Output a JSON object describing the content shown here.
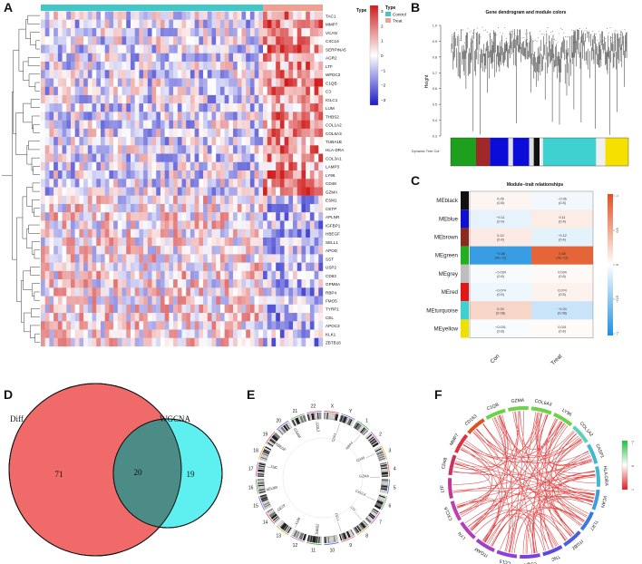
{
  "panel_labels": {
    "a": "A",
    "b": "B",
    "c": "C",
    "d": "D",
    "e": "E",
    "f": "F"
  },
  "panelA": {
    "genes": [
      "TAC1",
      "MMP7",
      "VCAN",
      "CXCL6",
      "SERPINA5",
      "AGR2",
      "LTF",
      "WFDC2",
      "C1QB",
      "C3",
      "IGLC1",
      "LUM",
      "THBS2",
      "COL1A2",
      "COL6A3",
      "TUBA1B",
      "HLA-DRA",
      "COL3A1",
      "LAMP3",
      "LY96",
      "CD48",
      "GZMA",
      "ESM1",
      "CETP",
      "APLNR",
      "IGFBP1",
      "HBEGF",
      "SELL1",
      "APOD",
      "SST",
      "USP2",
      "CD63",
      "GPM6A",
      "RBP4",
      "FMO5",
      "TYRP1",
      "CEL",
      "APOC3",
      "KLK1",
      "ZBTB16"
    ],
    "legend_type_title": "Type",
    "legend_control": "Control",
    "legend_treat": "Treat",
    "scale_ticks": [
      "3",
      "2",
      "1",
      "0",
      "−1",
      "−2",
      "−3"
    ],
    "colors": {
      "control": "#40c8c8",
      "treat": "#f0a090",
      "high": "#d01c1c",
      "mid": "#ffffff",
      "low": "#1c1cc8"
    }
  },
  "panelB": {
    "title": "Gene dendrogram and module colors",
    "ylabel": "Height",
    "yticks": [
      "1.0",
      "0.9",
      "0.8",
      "0.7",
      "0.6",
      "0.5",
      "0.4",
      "0.3"
    ],
    "row_label": "Dynamic Tree Cut",
    "module_bar_colors": [
      "#1ea01e",
      "#a02828",
      "#0c0cd8",
      "#e0e0e0",
      "#0c0cd8",
      "#e0e0e0",
      "#111111",
      "#f0f0f0",
      "#3fd0d0",
      "#f0f0f0",
      "#f5e000"
    ]
  },
  "panelC": {
    "title": "Module−trait relationships",
    "columns": [
      "Con",
      "Treat"
    ],
    "colorbar_ticks": [
      "1",
      "0.5",
      "0",
      "−0.5",
      "−1"
    ],
    "rows": [
      {
        "module": "MEblack",
        "color": "#111111",
        "con": "0.06",
        "con_p": "(0.8)",
        "treat": "−0.06",
        "treat_p": "(0.8)"
      },
      {
        "module": "MEblue",
        "color": "#1010d0",
        "con": "−0.11",
        "con_p": "(0.4)",
        "treat": "0.11",
        "treat_p": "(0.4)"
      },
      {
        "module": "MEbrown",
        "color": "#8b2a1e",
        "con": "0.12",
        "con_p": "(0.4)",
        "treat": "−0.12",
        "treat_p": "(0.4)"
      },
      {
        "module": "MEgreen",
        "color": "#22b022",
        "con": "−0.88",
        "con_p": "(4e−11)",
        "treat": "0.88",
        "treat_p": "(4e−11)"
      },
      {
        "module": "MEgrey",
        "color": "#bebebe",
        "con": "−0.034",
        "con_p": "(0.8)",
        "treat": "0.034",
        "treat_p": "(0.8)"
      },
      {
        "module": "MEred",
        "color": "#e01818",
        "con": "−0.074",
        "con_p": "(0.5)",
        "treat": "0.074",
        "treat_p": "(0.5)"
      },
      {
        "module": "MEturquoise",
        "color": "#40d0d0",
        "con": "0.24",
        "con_p": "(0.08)",
        "treat": "−0.24",
        "treat_p": "(0.08)"
      },
      {
        "module": "MEyellow",
        "color": "#f0e000",
        "con": "−0.031",
        "con_p": "(0.8)",
        "treat": "0.031",
        "treat_p": "(0.8)"
      }
    ]
  },
  "panelD": {
    "label_left": "Diff",
    "label_right": "WGCNA",
    "only_left": "71",
    "overlap": "20",
    "only_right": "19",
    "colors": {
      "left": "#f06a6a",
      "right": "#5ef0f0",
      "overlap": "#4c8c86"
    }
  },
  "panelE": {
    "chromosomes": [
      "X",
      "Y",
      "1",
      "2",
      "3",
      "4",
      "5",
      "6",
      "7",
      "8",
      "9",
      "10",
      "11",
      "12",
      "13",
      "14",
      "15",
      "16",
      "17",
      "18",
      "19",
      "20",
      "21",
      "22"
    ],
    "genes": [
      "CD63",
      "RBP4",
      "CD48",
      "GZMA",
      "CXCL6",
      "LTF",
      "CELL",
      "THBS2",
      "LUM",
      "CETP",
      "APLNR",
      "TNC",
      "HBEGF",
      "ITGAM",
      "COL3"
    ]
  },
  "panelF": {
    "genes": [
      "C1QB",
      "GZMA",
      "COL6A3",
      "LY96",
      "COL1A2",
      "CASP1",
      "HLA-DRA",
      "VCAN",
      "TLR7",
      "ITGB2",
      "TNC",
      "C1QA",
      "CCL5",
      "ITGAM",
      "LYN",
      "CXCL6",
      "LTF",
      "CD48",
      "MMP7",
      "CD163"
    ],
    "colorbar_ticks": [
      "−1",
      "0",
      "1"
    ]
  }
}
